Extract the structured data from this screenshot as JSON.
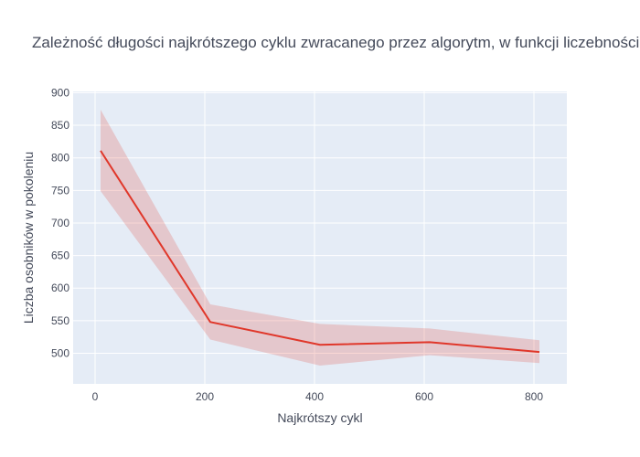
{
  "chart_data": {
    "type": "line",
    "title": "Zależność długości najkrótszego cyklu zwracanego przez algorytm,  w funkcji liczebności populacji",
    "xlabel": "Najkrótszy cykl",
    "ylabel": "Liczba osobników w pokoleniu",
    "xlim": [
      -40,
      860
    ],
    "ylim": [
      453,
      902
    ],
    "x_ticks": [
      0,
      200,
      400,
      600,
      800
    ],
    "y_ticks": [
      500,
      550,
      600,
      650,
      700,
      750,
      800,
      850,
      900
    ],
    "grid": true,
    "legend": "none",
    "series": [
      {
        "x": [
          10,
          210,
          410,
          610,
          810
        ],
        "y": [
          811,
          548,
          513,
          517,
          502
        ],
        "upper": [
          874,
          575,
          545,
          538,
          520
        ],
        "lower": [
          749,
          521,
          481,
          497,
          485
        ]
      }
    ]
  },
  "colors": {
    "plot_bg": "#e5ecf6",
    "grid": "#ffffff",
    "line": "#e0372a",
    "band": "#e0372a",
    "text": "#444a5a"
  }
}
